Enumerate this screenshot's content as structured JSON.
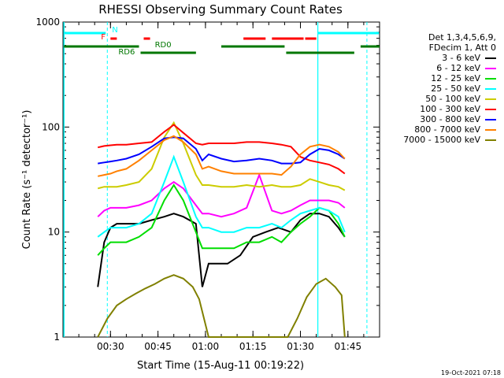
{
  "chart_data": {
    "type": "line",
    "title": "RHESSI Observing Summary Count Rates",
    "xlabel": "Start Time (15-Aug-11 00:19:22)",
    "ylabel": "Count Rate (s⁻¹ detector⁻¹)",
    "yscale": "log",
    "ylim": [
      1,
      1000
    ],
    "xlim_minutes": [
      20,
      120
    ],
    "y_ticks": [
      "1",
      "10",
      "100",
      "1000"
    ],
    "x_ticks": [
      "00:30",
      "00:45",
      "01:00",
      "01:15",
      "01:30",
      "01:45"
    ],
    "x_tick_minutes": [
      35,
      50,
      65,
      80,
      95,
      110
    ],
    "legend": {
      "placement": "right",
      "header": [
        "Det 1,3,4,5,6,9,",
        "FDecim 1, Att 0"
      ],
      "entries": [
        "3 - 6 keV",
        "6 - 12 keV",
        "12 - 25 keV",
        "25 - 50 keV",
        "50 - 100 keV",
        "100 - 300 keV",
        "300 - 800 keV",
        "800 - 7000 keV",
        "7000 - 15000 keV"
      ]
    },
    "flag_labels": [
      "N",
      "F",
      "RD0",
      "RD6"
    ],
    "timestamp": "19-Oct-2021 07:18",
    "colors": [
      "#000000",
      "#ff00ff",
      "#00dd00",
      "#00ffff",
      "#cccc00",
      "#ff0000",
      "#0000ff",
      "#ff8000",
      "#808000"
    ],
    "series": [
      {
        "name": "3 - 6 keV",
        "x": [
          31,
          33,
          35,
          37,
          40,
          44,
          48,
          52,
          55,
          58,
          62,
          64,
          66,
          68,
          72,
          76,
          80,
          84,
          88,
          92,
          95,
          98,
          101,
          104,
          107,
          109
        ],
        "y": [
          3,
          8,
          11,
          12,
          12,
          12,
          13,
          14,
          15,
          14,
          12,
          3,
          5,
          5,
          5,
          6,
          9,
          10,
          11,
          10,
          13,
          15,
          15,
          14,
          11,
          9
        ]
      },
      {
        "name": "6 - 12 keV",
        "x": [
          31,
          33,
          35,
          37,
          40,
          44,
          48,
          52,
          55,
          58,
          62,
          64,
          66,
          70,
          74,
          78,
          82,
          86,
          89,
          92,
          95,
          98,
          101,
          104,
          107,
          109
        ],
        "y": [
          14,
          16,
          17,
          17,
          17,
          18,
          20,
          26,
          30,
          26,
          18,
          15,
          15,
          14,
          15,
          17,
          35,
          16,
          15,
          16,
          18,
          20,
          20,
          20,
          19,
          17
        ]
      },
      {
        "name": "12 - 25 keV",
        "x": [
          31,
          33,
          35,
          37,
          40,
          44,
          48,
          52,
          55,
          58,
          62,
          64,
          66,
          70,
          74,
          78,
          82,
          86,
          89,
          92,
          95,
          98,
          101,
          104,
          107,
          109
        ],
        "y": [
          6,
          7,
          8,
          8,
          8,
          9,
          11,
          20,
          28,
          20,
          10,
          7,
          7,
          7,
          7,
          8,
          8,
          9,
          8,
          10,
          12,
          14,
          17,
          16,
          12,
          9
        ]
      },
      {
        "name": "25 - 50 keV",
        "x": [
          31,
          33,
          35,
          37,
          40,
          44,
          48,
          52,
          55,
          58,
          62,
          64,
          66,
          70,
          74,
          78,
          82,
          86,
          89,
          92,
          95,
          98,
          101,
          104,
          107,
          109
        ],
        "y": [
          9,
          10,
          11,
          11,
          11,
          12,
          15,
          30,
          52,
          30,
          14,
          11,
          11,
          10,
          10,
          11,
          11,
          12,
          11,
          13,
          15,
          16,
          17,
          16,
          14,
          10
        ]
      },
      {
        "name": "50 - 100 keV",
        "x": [
          31,
          33,
          35,
          37,
          40,
          44,
          48,
          52,
          55,
          58,
          62,
          64,
          66,
          70,
          74,
          78,
          82,
          86,
          89,
          92,
          95,
          98,
          101,
          104,
          107,
          109
        ],
        "y": [
          26,
          27,
          27,
          27,
          28,
          30,
          40,
          80,
          110,
          70,
          35,
          28,
          28,
          27,
          27,
          28,
          27,
          28,
          27,
          27,
          28,
          32,
          30,
          28,
          27,
          25
        ]
      },
      {
        "name": "100 - 300 keV",
        "x": [
          31,
          33,
          35,
          37,
          40,
          44,
          48,
          52,
          55,
          58,
          62,
          64,
          66,
          70,
          74,
          78,
          82,
          86,
          89,
          92,
          95,
          98,
          101,
          104,
          107,
          109
        ],
        "y": [
          64,
          66,
          67,
          68,
          68,
          70,
          72,
          90,
          105,
          88,
          70,
          68,
          70,
          70,
          70,
          72,
          72,
          70,
          68,
          65,
          52,
          48,
          46,
          44,
          40,
          36
        ]
      },
      {
        "name": "300 - 800 keV",
        "x": [
          31,
          33,
          35,
          37,
          40,
          44,
          48,
          52,
          55,
          58,
          62,
          64,
          66,
          70,
          74,
          78,
          82,
          86,
          89,
          92,
          95,
          98,
          101,
          104,
          107,
          109
        ],
        "y": [
          45,
          46,
          47,
          48,
          50,
          55,
          65,
          78,
          80,
          78,
          62,
          48,
          55,
          50,
          47,
          48,
          50,
          48,
          45,
          45,
          46,
          55,
          62,
          60,
          55,
          50
        ]
      },
      {
        "name": "800 - 7000 keV",
        "x": [
          31,
          33,
          35,
          37,
          40,
          44,
          48,
          52,
          55,
          58,
          62,
          64,
          66,
          70,
          74,
          78,
          82,
          86,
          89,
          92,
          95,
          98,
          101,
          104,
          107,
          109
        ],
        "y": [
          34,
          35,
          36,
          38,
          40,
          48,
          60,
          75,
          82,
          72,
          55,
          40,
          42,
          38,
          36,
          36,
          36,
          36,
          35,
          42,
          55,
          65,
          68,
          65,
          58,
          50
        ]
      },
      {
        "name": "7000 - 15000 keV",
        "x": [
          31,
          34,
          37,
          40,
          43,
          46,
          49,
          52,
          55,
          58,
          61,
          63,
          66,
          70,
          74,
          78,
          82,
          86,
          89,
          91,
          94,
          97,
          100,
          103,
          106,
          108,
          109
        ],
        "y": [
          1,
          1.5,
          2,
          2.3,
          2.6,
          2.9,
          3.2,
          3.6,
          3.9,
          3.6,
          3.0,
          2.3,
          1,
          1,
          1,
          1,
          1,
          1,
          1,
          1,
          1.5,
          2.4,
          3.2,
          3.6,
          3.0,
          2.5,
          1
        ]
      }
    ]
  }
}
